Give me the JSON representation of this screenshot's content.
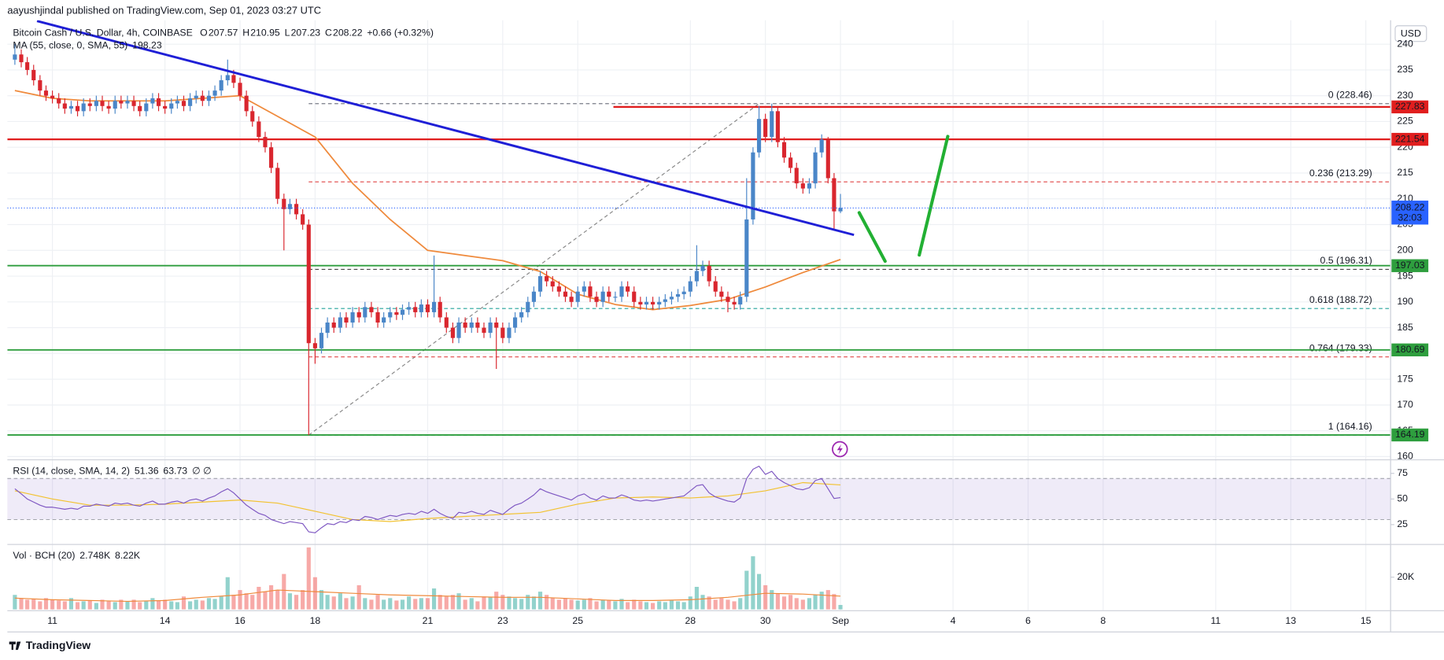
{
  "chart_data": {
    "type": "candlestick",
    "header": "aayushjindal published on TradingView.com, Sep 01, 2023 03:27 UTC",
    "title": "Bitcoin Cash / U.S. Dollar, 4h, COINBASE",
    "ohlc_labels": [
      "O",
      "H",
      "L",
      "C"
    ],
    "change": "+0.66 (+0.32%)",
    "currency": "USD",
    "brand": "TradingView",
    "up_color": "#4a86c8",
    "down_color": "#d9262e",
    "grid": true,
    "xlim": [
      9.8,
      46.66
    ],
    "xticks": [
      11,
      14,
      16,
      18,
      21,
      23,
      25,
      28,
      30,
      {
        "value": 32,
        "label": "Sep"
      },
      {
        "value": 35,
        "label": "4"
      },
      {
        "value": 37,
        "label": "6"
      },
      {
        "value": 39,
        "label": "8"
      },
      {
        "value": 42,
        "label": "11"
      },
      {
        "value": 44,
        "label": "13"
      },
      {
        "value": 46,
        "label": "15"
      }
    ],
    "ylim": [
      159.82,
      244.64
    ],
    "yticks": [
      160,
      165,
      170,
      175,
      180,
      185,
      190,
      195,
      200,
      205,
      210,
      215,
      220,
      225,
      230,
      235,
      240
    ],
    "x": [
      10,
      10.17,
      10.33,
      10.5,
      10.67,
      10.83,
      11,
      11.17,
      11.33,
      11.5,
      11.67,
      11.83,
      12,
      12.17,
      12.33,
      12.5,
      12.67,
      12.83,
      13,
      13.17,
      13.33,
      13.5,
      13.67,
      13.83,
      14,
      14.17,
      14.33,
      14.5,
      14.67,
      14.83,
      15,
      15.17,
      15.33,
      15.5,
      15.67,
      15.83,
      16,
      16.17,
      16.33,
      16.5,
      16.67,
      16.83,
      17,
      17.17,
      17.33,
      17.5,
      17.67,
      17.83,
      18,
      18.17,
      18.33,
      18.5,
      18.67,
      18.83,
      19,
      19.17,
      19.33,
      19.5,
      19.67,
      19.83,
      20,
      20.17,
      20.33,
      20.5,
      20.67,
      20.83,
      21,
      21.17,
      21.33,
      21.5,
      21.67,
      21.83,
      22,
      22.17,
      22.33,
      22.5,
      22.67,
      22.83,
      23,
      23.17,
      23.33,
      23.5,
      23.67,
      23.83,
      24,
      24.17,
      24.33,
      24.5,
      24.67,
      24.83,
      25,
      25.17,
      25.33,
      25.5,
      25.67,
      25.83,
      26,
      26.17,
      26.33,
      26.5,
      26.67,
      26.83,
      27,
      27.17,
      27.33,
      27.5,
      27.67,
      27.83,
      28,
      28.17,
      28.33,
      28.5,
      28.67,
      28.83,
      29,
      29.17,
      29.33,
      29.5,
      29.67,
      29.83,
      30,
      30.17,
      30.33,
      30.5,
      30.67,
      30.83,
      31,
      31.17,
      31.33,
      31.5,
      31.67,
      31.83,
      32
    ],
    "open": [
      237,
      238,
      236.5,
      235,
      233,
      231,
      230,
      229.5,
      228.5,
      227.5,
      228,
      227,
      228.5,
      228,
      229,
      228,
      227.5,
      229,
      228.5,
      229,
      228,
      227,
      228.5,
      229.5,
      228,
      227.5,
      228.5,
      229,
      228,
      229.5,
      230,
      229,
      230,
      231,
      233,
      234,
      232.5,
      230,
      227,
      225,
      222,
      220,
      216,
      210,
      208,
      209,
      207,
      205,
      182,
      181,
      184,
      186,
      185,
      187,
      186,
      188,
      187,
      189,
      188,
      186,
      187,
      188,
      187.5,
      188.5,
      189,
      188,
      189.5,
      188,
      190,
      187,
      185,
      183,
      186,
      185,
      186,
      185,
      184,
      186,
      185,
      183,
      185,
      187,
      188,
      190,
      192,
      195,
      194,
      193,
      192,
      191,
      190,
      192,
      193,
      191,
      190,
      192,
      191,
      191,
      193,
      192,
      190,
      189.5,
      190,
      189.5,
      190,
      190.5,
      191,
      191.5,
      192,
      194,
      196,
      197,
      194,
      192,
      191,
      190,
      189.5,
      191,
      206,
      219,
      225.5,
      222,
      227,
      221,
      218,
      216,
      213,
      212,
      213,
      219,
      221.5,
      214,
      207.57
    ],
    "high": [
      240,
      239,
      237.5,
      236,
      234,
      232,
      231,
      230.5,
      229.5,
      229,
      229,
      229.5,
      229.5,
      230,
      230,
      229,
      230,
      230,
      230,
      230,
      229,
      229.5,
      230.5,
      230.5,
      229,
      229.5,
      230,
      230,
      230.5,
      231,
      231,
      231,
      232,
      234,
      237,
      235,
      233.5,
      231,
      228,
      226,
      223,
      221,
      217,
      211,
      210,
      210,
      208,
      206,
      183,
      185,
      187,
      187,
      188,
      188,
      189,
      189,
      190,
      190,
      189,
      188,
      189,
      189,
      189.5,
      190,
      190,
      190.5,
      190.5,
      199,
      191,
      188,
      186,
      187,
      187,
      187,
      187,
      186,
      187,
      187,
      186,
      186,
      188,
      189,
      191,
      193,
      196,
      196,
      195,
      194,
      193,
      192,
      193,
      194,
      194,
      192,
      193,
      193,
      192,
      194,
      194,
      193,
      191,
      191,
      191,
      191,
      191.5,
      192,
      192.5,
      193,
      195,
      201,
      198,
      198,
      195,
      193,
      192,
      191,
      192,
      214,
      220,
      228,
      226.5,
      228.46,
      228,
      222,
      219,
      217,
      214,
      214,
      220,
      222.5,
      222,
      215,
      210.95
    ],
    "low": [
      236,
      235.5,
      234,
      232,
      230,
      229,
      228.5,
      227.5,
      226.5,
      226.5,
      226,
      226,
      227,
      227,
      227,
      226.5,
      226.5,
      227.5,
      227.5,
      227,
      226,
      226,
      227.5,
      227,
      226.5,
      226.5,
      227.5,
      227,
      227,
      228.5,
      228,
      228,
      229,
      230,
      232,
      231.5,
      229,
      226,
      224,
      221,
      219,
      215,
      209,
      200,
      207,
      206,
      204,
      164.16,
      178,
      180,
      183,
      184,
      184,
      185,
      185,
      186,
      186,
      187,
      185,
      185,
      186,
      186.5,
      186.5,
      187.5,
      187,
      187,
      187,
      187,
      186,
      184,
      182,
      182,
      184,
      184,
      184,
      183,
      183,
      177,
      182,
      182,
      184,
      186,
      187,
      189,
      191,
      193,
      192,
      191,
      190,
      189,
      189,
      191,
      190,
      189,
      189,
      190,
      190,
      190,
      191,
      189,
      188.5,
      188.5,
      188.5,
      188.5,
      189,
      189.5,
      190,
      190.5,
      191,
      193,
      195,
      193,
      191,
      190,
      188,
      188.5,
      188.5,
      190,
      205,
      218,
      221,
      221,
      220,
      217,
      215,
      212,
      211,
      211,
      212,
      218,
      213,
      204,
      207.23
    ],
    "close": [
      238,
      236.5,
      235,
      233,
      231,
      230,
      229.5,
      228.5,
      227.5,
      228,
      227,
      228.5,
      228,
      229,
      228,
      227.5,
      229,
      228.5,
      229,
      228,
      227,
      228.5,
      229.5,
      228,
      227.5,
      228.5,
      229,
      228,
      229.5,
      230,
      229,
      230,
      231,
      233,
      234,
      232.5,
      230,
      227,
      225,
      222,
      220,
      216,
      210,
      208,
      209,
      207,
      205,
      182,
      181,
      184,
      186,
      185,
      187,
      186,
      188,
      187,
      189,
      188,
      186,
      187,
      188,
      187.5,
      188.5,
      189,
      188,
      189.5,
      188,
      190,
      187,
      185,
      183,
      186,
      185,
      186,
      185,
      184,
      186,
      185,
      183,
      185,
      187,
      188,
      190,
      192,
      195,
      194,
      193,
      192,
      191,
      190,
      192,
      193,
      191,
      190,
      192,
      191,
      191,
      193,
      192,
      190,
      189.5,
      190,
      189.5,
      190,
      190.5,
      191,
      191.5,
      192,
      194,
      196,
      197,
      194,
      192,
      191,
      190,
      189.5,
      191,
      206,
      219,
      225.5,
      222,
      227,
      221,
      218,
      216,
      213,
      212,
      213,
      219,
      221.5,
      214,
      207.57,
      208.22
    ],
    "countdown": "32:03",
    "last_color": "#2962ff",
    "ma": {
      "name": "MA (55, close, 0, SMA, 55)",
      "color": "#ef8a3c",
      "x": [
        10,
        11,
        12,
        13,
        14,
        15,
        16,
        17,
        18,
        19,
        20,
        21,
        22,
        23,
        24,
        25,
        26,
        27,
        28,
        29,
        30,
        31,
        32
      ],
      "values": [
        231,
        229.5,
        229,
        229,
        229,
        229.5,
        230,
        226,
        222,
        213,
        206,
        200,
        199,
        198,
        195.9,
        191.5,
        189.5,
        188.5,
        189.3,
        190.5,
        192.9,
        195.7,
        198.23
      ]
    },
    "trendline": {
      "color": "#1f1fd6",
      "x": [
        10.59,
        32.36
      ],
      "values": [
        244.5,
        203
      ]
    },
    "levels": [
      {
        "value": 227.83,
        "color": "#e01e1e",
        "from": 25.95
      },
      {
        "value": 221.54,
        "color": "#e01e1e"
      },
      {
        "value": 197.03,
        "color": "#2e9e3e"
      },
      {
        "value": 180.69,
        "color": "#2e9e3e"
      },
      {
        "value": 164.19,
        "color": "#2e9e3e"
      }
    ],
    "fib": {
      "x": [
        17.83,
        29.83
      ],
      "levels": [
        {
          "label": "0 (228.46)",
          "value": 228.46,
          "color": "#787b86"
        },
        {
          "label": "0.236 (213.29)",
          "value": 213.29,
          "color": "#e04545"
        },
        {
          "label": "0.5 (196.31)",
          "value": 196.31,
          "color": "#444444"
        },
        {
          "label": "0.618 (188.72)",
          "value": 188.72,
          "color": "#22a39a"
        },
        {
          "label": "0.764 (179.33)",
          "value": 179.33,
          "color": "#e04545"
        },
        {
          "label": "1 (164.16)",
          "value": 164.16,
          "color": "#3a9ea8"
        }
      ]
    },
    "arrows": {
      "color": "#22b033",
      "lines": [
        {
          "x": [
            32.5,
            33.19
          ],
          "values": [
            207.3,
            197.9
          ]
        },
        {
          "x": [
            34.1,
            34.86
          ],
          "values": [
            199.1,
            222.1
          ]
        }
      ]
    },
    "rsi": {
      "name": "RSI (14, close, SMA, 14, 2)",
      "extra": "∅ ∅",
      "color": "#7e57c2",
      "ylim": [
        7,
        86
      ],
      "yticks": [
        25,
        50,
        75
      ],
      "band": [
        30,
        70
      ],
      "values": [
        60,
        55,
        50,
        47,
        44,
        42,
        42,
        41,
        40,
        41,
        40,
        43,
        43,
        45,
        44,
        43,
        46,
        45,
        46,
        44,
        43,
        46,
        48,
        45,
        45,
        47,
        48,
        46,
        49,
        50,
        48,
        51,
        53,
        57,
        60,
        56,
        50,
        44,
        40,
        36,
        34,
        30,
        28,
        26,
        28,
        27,
        26,
        18,
        17,
        22,
        26,
        25,
        28,
        27,
        30,
        29,
        33,
        32,
        30,
        32,
        34,
        33,
        35,
        36,
        35,
        38,
        36,
        40,
        36,
        33,
        31,
        37,
        36,
        38,
        36,
        35,
        39,
        37,
        35,
        40,
        44,
        46,
        50,
        54,
        60,
        57,
        55,
        53,
        51,
        49,
        53,
        55,
        51,
        49,
        53,
        51,
        51,
        54,
        52,
        49,
        48,
        49,
        48,
        49,
        50,
        51,
        52,
        53,
        58,
        63,
        64,
        56,
        52,
        50,
        48,
        47,
        51,
        70,
        79,
        82,
        74,
        77,
        70,
        66,
        63,
        60,
        59,
        61,
        68,
        70,
        60,
        50.5,
        51.36
      ],
      "ma": {
        "color": "#f2c230",
        "x": [
          10,
          11,
          12,
          13,
          14,
          15,
          16,
          17,
          18,
          19,
          20,
          21,
          22,
          23,
          24,
          25,
          26,
          27,
          28,
          29,
          30,
          31,
          32
        ],
        "values": [
          58,
          50,
          44,
          44,
          45,
          47,
          49,
          46,
          38,
          30,
          28,
          31,
          33,
          35,
          37,
          45,
          51,
          52,
          51,
          53,
          58,
          66,
          63.73
        ]
      }
    },
    "volume": {
      "name": "Vol · BCH (20)",
      "value_label": "2.748K",
      "up_color": "#26a69a",
      "down_color": "#ef5350",
      "ylim": [
        0,
        38900
      ],
      "yticks": [
        {
          "value": 20000,
          "label": "20K"
        }
      ],
      "values": [
        9000,
        7000,
        6000,
        6500,
        5000,
        7000,
        6000,
        5500,
        5000,
        7000,
        4500,
        5000,
        5500,
        4000,
        6000,
        5000,
        4500,
        6000,
        5000,
        6000,
        4500,
        5000,
        7000,
        5500,
        6000,
        5000,
        4500,
        8000,
        5000,
        6000,
        5500,
        7000,
        6500,
        8000,
        20000,
        9000,
        12000,
        10000,
        9000,
        14000,
        11000,
        15000,
        12000,
        22000,
        10000,
        9000,
        12000,
        38500,
        20000,
        12000,
        9000,
        8000,
        10000,
        7000,
        8000,
        15000,
        7000,
        6000,
        9000,
        6000,
        7000,
        5500,
        6000,
        8000,
        6500,
        7000,
        7000,
        13000,
        9000,
        8000,
        9000,
        10000,
        6000,
        7000,
        5000,
        8000,
        7500,
        11000,
        9000,
        8000,
        7000,
        6500,
        9000,
        8000,
        11000,
        9000,
        7000,
        6000,
        7000,
        6000,
        5500,
        6000,
        7000,
        5000,
        6000,
        5500,
        5000,
        6500,
        4500,
        6000,
        5000,
        4500,
        4000,
        5000,
        4500,
        5500,
        5000,
        4500,
        8000,
        14000,
        9000,
        8000,
        6000,
        7000,
        6000,
        5000,
        7000,
        24000,
        33000,
        22000,
        15000,
        12000,
        10000,
        8000,
        9000,
        7000,
        6000,
        7000,
        9000,
        11000,
        12000,
        9500,
        2748
      ],
      "ma": {
        "color": "#ef8a3c",
        "value_label": "8.22K",
        "x": [
          10,
          11,
          12,
          13,
          14,
          15,
          16,
          17,
          18,
          19,
          20,
          21,
          22,
          23,
          24,
          25,
          26,
          27,
          28,
          29,
          30,
          31,
          32
        ],
        "values": [
          7000,
          6000,
          5500,
          5000,
          5500,
          7500,
          9000,
          12000,
          11000,
          10000,
          9000,
          8500,
          8000,
          7500,
          7500,
          6500,
          5500,
          5500,
          6000,
          7500,
          10000,
          9500,
          8220
        ]
      }
    }
  }
}
